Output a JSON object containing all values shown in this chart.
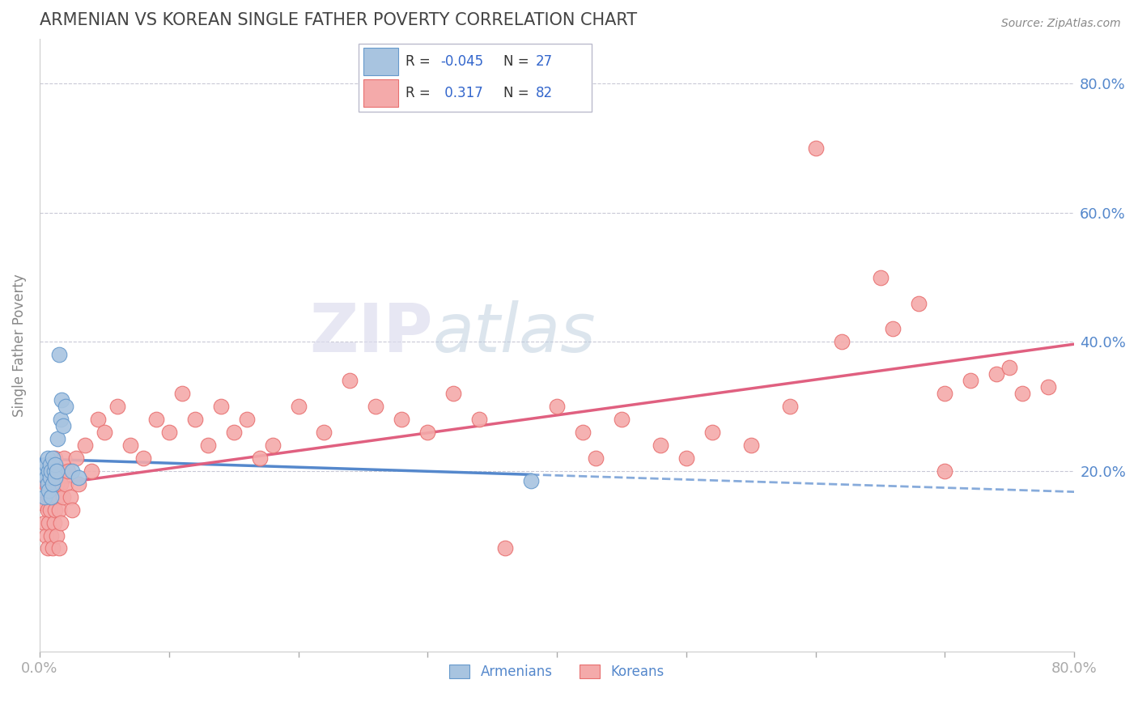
{
  "title": "ARMENIAN VS KOREAN SINGLE FATHER POVERTY CORRELATION CHART",
  "source_text": "Source: ZipAtlas.com",
  "ylabel": "Single Father Poverty",
  "y_tick_labels": [
    "20.0%",
    "40.0%",
    "60.0%",
    "80.0%"
  ],
  "y_tick_values": [
    0.2,
    0.4,
    0.6,
    0.8
  ],
  "xmin": 0.0,
  "xmax": 0.8,
  "ymin": -0.08,
  "ymax": 0.87,
  "armenian_color": "#A8C4E0",
  "korean_color": "#F4AAAA",
  "armenian_edge": "#6699CC",
  "korean_edge": "#E87070",
  "legend_R1": "-0.045",
  "legend_N1": "27",
  "legend_R2": "0.317",
  "legend_N2": "82",
  "watermark_zip": "ZIP",
  "watermark_atlas": "atlas",
  "title_color": "#444444",
  "axis_label_color": "#5588CC",
  "grid_color": "#BBBBCC",
  "arm_trend_color": "#5588CC",
  "kor_trend_color": "#E06080",
  "arm_x": [
    0.003,
    0.004,
    0.005,
    0.005,
    0.006,
    0.006,
    0.007,
    0.007,
    0.008,
    0.008,
    0.009,
    0.009,
    0.01,
    0.01,
    0.011,
    0.012,
    0.012,
    0.013,
    0.014,
    0.015,
    0.016,
    0.017,
    0.018,
    0.02,
    0.025,
    0.03,
    0.38
  ],
  "arm_y": [
    0.2,
    0.16,
    0.21,
    0.19,
    0.18,
    0.22,
    0.17,
    0.2,
    0.19,
    0.21,
    0.16,
    0.2,
    0.22,
    0.18,
    0.2,
    0.19,
    0.21,
    0.2,
    0.25,
    0.38,
    0.28,
    0.31,
    0.27,
    0.3,
    0.2,
    0.19,
    0.185
  ],
  "kor_x": [
    0.003,
    0.004,
    0.005,
    0.005,
    0.006,
    0.006,
    0.007,
    0.007,
    0.008,
    0.008,
    0.009,
    0.009,
    0.01,
    0.01,
    0.011,
    0.011,
    0.012,
    0.012,
    0.013,
    0.013,
    0.014,
    0.014,
    0.015,
    0.015,
    0.016,
    0.016,
    0.017,
    0.018,
    0.019,
    0.02,
    0.022,
    0.024,
    0.025,
    0.028,
    0.03,
    0.035,
    0.04,
    0.045,
    0.05,
    0.06,
    0.07,
    0.08,
    0.09,
    0.1,
    0.11,
    0.12,
    0.13,
    0.14,
    0.15,
    0.16,
    0.17,
    0.18,
    0.2,
    0.22,
    0.24,
    0.26,
    0.28,
    0.3,
    0.32,
    0.34,
    0.36,
    0.4,
    0.42,
    0.43,
    0.45,
    0.48,
    0.5,
    0.52,
    0.55,
    0.58,
    0.6,
    0.62,
    0.65,
    0.68,
    0.7,
    0.72,
    0.74,
    0.76,
    0.78,
    0.66,
    0.7,
    0.75
  ],
  "kor_y": [
    0.15,
    0.12,
    0.18,
    0.1,
    0.14,
    0.08,
    0.16,
    0.12,
    0.18,
    0.14,
    0.1,
    0.2,
    0.16,
    0.08,
    0.18,
    0.12,
    0.22,
    0.14,
    0.18,
    0.1,
    0.16,
    0.2,
    0.14,
    0.08,
    0.18,
    0.12,
    0.2,
    0.16,
    0.22,
    0.18,
    0.2,
    0.16,
    0.14,
    0.22,
    0.18,
    0.24,
    0.2,
    0.28,
    0.26,
    0.3,
    0.24,
    0.22,
    0.28,
    0.26,
    0.32,
    0.28,
    0.24,
    0.3,
    0.26,
    0.28,
    0.22,
    0.24,
    0.3,
    0.26,
    0.34,
    0.3,
    0.28,
    0.26,
    0.32,
    0.28,
    0.08,
    0.3,
    0.26,
    0.22,
    0.28,
    0.24,
    0.22,
    0.26,
    0.24,
    0.3,
    0.7,
    0.4,
    0.5,
    0.46,
    0.32,
    0.34,
    0.35,
    0.32,
    0.33,
    0.42,
    0.2,
    0.36
  ]
}
